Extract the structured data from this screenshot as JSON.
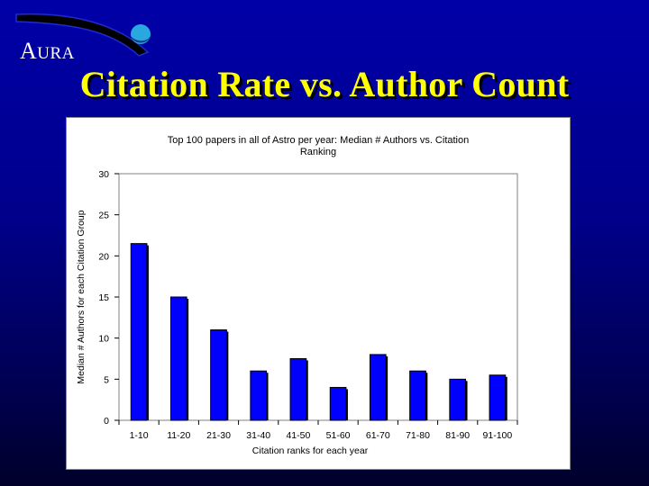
{
  "logo": {
    "text_first": "A",
    "text_rest": "URA"
  },
  "slide": {
    "title": "Citation Rate vs. Author Count"
  },
  "colors": {
    "bar": "#0000ff",
    "plot_bg": "#ffffff",
    "title": "#ffff00"
  },
  "chart_data": {
    "type": "bar",
    "title_line1": "Top 100 papers in all of Astro per year:   Median # Authors vs. Citation",
    "title_line2": "Ranking",
    "xlabel": "Citation ranks for each year",
    "ylabel": "Median # Authors for each Citation Group",
    "categories": [
      "1-10",
      "11-20",
      "21-30",
      "31-40",
      "41-50",
      "51-60",
      "61-70",
      "71-80",
      "81-90",
      "91-100"
    ],
    "values": [
      21.5,
      15,
      11,
      6,
      7.5,
      4,
      8,
      6,
      5,
      5.5
    ],
    "ylim": [
      0,
      30
    ],
    "yticks": [
      "0",
      "5",
      "10",
      "15",
      "20",
      "25",
      "30"
    ],
    "grid": false,
    "legend": "none"
  }
}
